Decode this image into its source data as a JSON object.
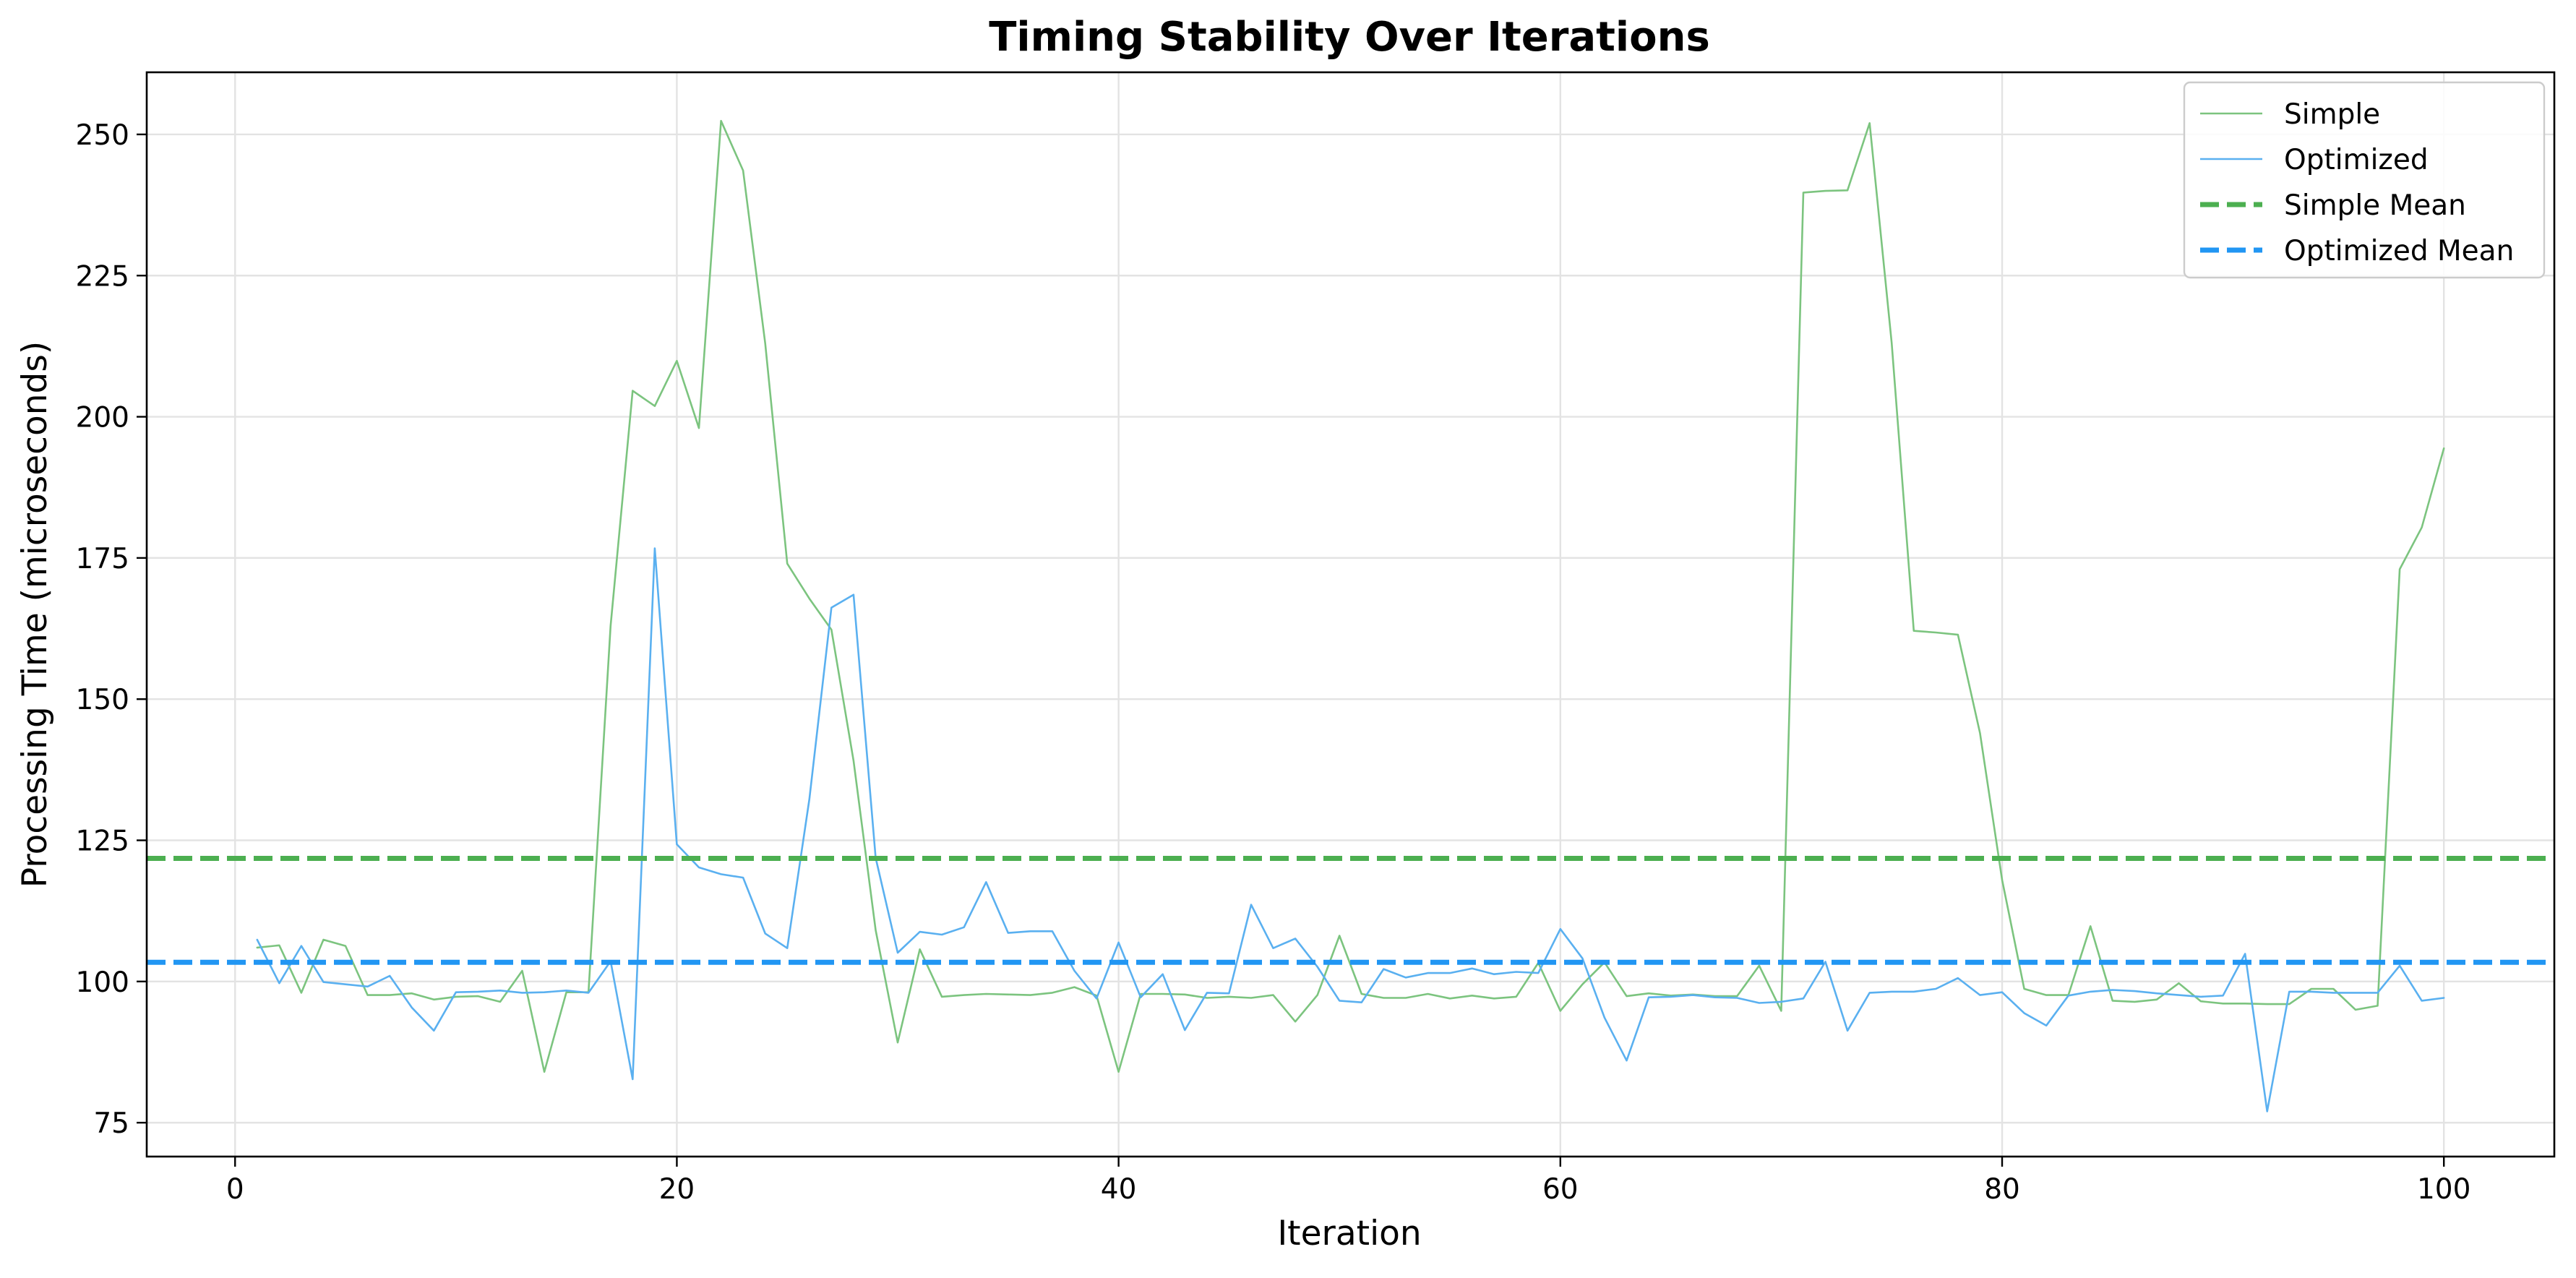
{
  "chart_data": {
    "type": "line",
    "title": "Timing Stability Over Iterations",
    "xlabel": "Iteration",
    "ylabel": "Processing Time (microseconds)",
    "xlim": [
      -4,
      105
    ],
    "ylim": [
      69,
      261
    ],
    "xticks": [
      0,
      20,
      40,
      60,
      80,
      100
    ],
    "yticks": [
      75,
      100,
      125,
      150,
      175,
      200,
      225,
      250
    ],
    "grid": true,
    "legend_position": "top-right",
    "x": [
      1,
      2,
      3,
      4,
      5,
      6,
      7,
      8,
      9,
      10,
      11,
      12,
      13,
      14,
      15,
      16,
      17,
      18,
      19,
      20,
      21,
      22,
      23,
      24,
      25,
      26,
      27,
      28,
      29,
      30,
      31,
      32,
      33,
      34,
      35,
      36,
      37,
      38,
      39,
      40,
      41,
      42,
      43,
      44,
      45,
      46,
      47,
      48,
      49,
      50,
      51,
      52,
      53,
      54,
      55,
      56,
      57,
      58,
      59,
      60,
      61,
      62,
      63,
      64,
      65,
      66,
      67,
      68,
      69,
      70,
      71,
      72,
      73,
      74,
      75,
      76,
      77,
      78,
      79,
      80,
      81,
      82,
      83,
      84,
      85,
      86,
      87,
      88,
      89,
      90,
      91,
      92,
      93,
      94,
      95,
      96,
      97,
      98,
      99,
      100
    ],
    "series": [
      {
        "name": "Simple",
        "color": "#4caf50",
        "values": [
          106.0,
          106.4,
          98.0,
          107.4,
          106.3,
          97.6,
          97.6,
          97.9,
          96.8,
          97.3,
          97.4,
          96.4,
          101.9,
          84.0,
          98.1,
          98.1,
          163.0,
          204.6,
          201.9,
          209.9,
          198.0,
          252.4,
          243.6,
          213.0,
          174.0,
          167.8,
          162.3,
          139.1,
          109.1,
          89.2,
          105.7,
          97.3,
          97.6,
          97.8,
          97.7,
          97.6,
          98.0,
          99.0,
          97.5,
          84.0,
          97.8,
          97.8,
          97.7,
          97.1,
          97.3,
          97.1,
          97.6,
          92.9,
          97.6,
          108.1,
          97.8,
          97.1,
          97.1,
          97.8,
          97.0,
          97.5,
          97.0,
          97.3,
          103.3,
          94.8,
          99.5,
          103.4,
          97.4,
          97.9,
          97.5,
          97.7,
          97.4,
          97.4,
          102.8,
          94.8,
          239.7,
          240.0,
          240.1,
          252.0,
          213.1,
          162.1,
          161.8,
          161.4,
          144.0,
          118.0,
          98.7,
          97.6,
          97.6,
          109.8,
          96.6,
          96.4,
          96.8,
          99.7,
          96.5,
          96.1,
          96.1,
          96.0,
          96.0,
          98.7,
          98.7,
          95.0,
          95.7,
          173.0,
          180.4,
          194.4
        ]
      },
      {
        "name": "Optimized",
        "color": "#2196f3",
        "values": [
          107.4,
          99.7,
          106.3,
          99.9,
          99.5,
          99.1,
          101.0,
          95.4,
          91.3,
          98.1,
          98.2,
          98.4,
          98.0,
          98.1,
          98.4,
          98.0,
          103.6,
          82.7,
          176.7,
          124.3,
          120.2,
          119.0,
          118.4,
          108.5,
          105.9,
          132.3,
          166.2,
          168.5,
          121.9,
          105.1,
          108.8,
          108.3,
          109.6,
          117.6,
          108.6,
          108.9,
          108.9,
          101.9,
          97.0,
          106.9,
          97.2,
          101.3,
          91.4,
          98.0,
          97.9,
          113.6,
          105.9,
          107.6,
          102.6,
          96.6,
          96.3,
          102.2,
          100.7,
          101.5,
          101.5,
          102.3,
          101.3,
          101.7,
          101.5,
          109.3,
          104.1,
          93.6,
          86.0,
          97.2,
          97.3,
          97.6,
          97.2,
          97.1,
          96.2,
          96.4,
          97.0,
          103.5,
          91.3,
          98.0,
          98.2,
          98.2,
          98.7,
          100.6,
          97.6,
          98.1,
          94.4,
          92.2,
          97.5,
          98.2,
          98.5,
          98.3,
          97.9,
          97.6,
          97.3,
          97.5,
          104.9,
          77.0,
          98.2,
          98.2,
          98.0,
          98.0,
          98.0,
          102.8,
          96.6,
          97.1
        ]
      }
    ],
    "reference_lines": [
      {
        "name": "Simple Mean",
        "value": 121.8,
        "color": "#4caf50",
        "style": "dashed"
      },
      {
        "name": "Optimized Mean",
        "value": 103.4,
        "color": "#2196f3",
        "style": "dashed"
      }
    ]
  }
}
